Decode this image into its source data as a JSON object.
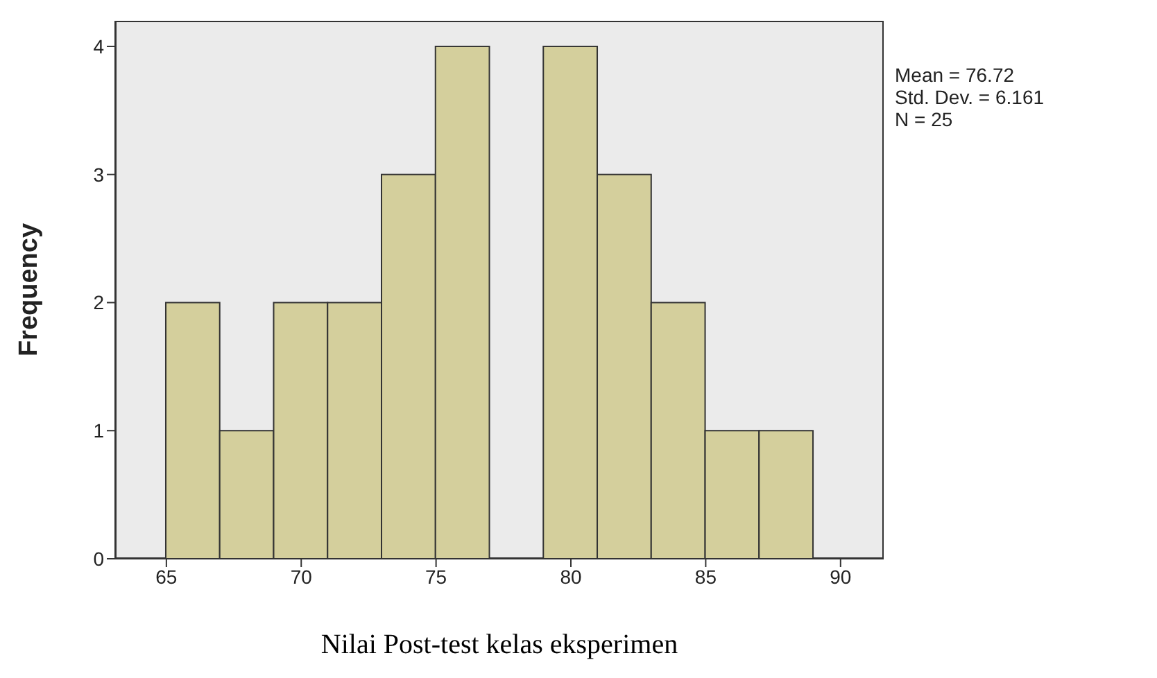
{
  "chart_data": {
    "type": "histogram",
    "ylabel": "Frequency",
    "xlabel": "Nilai Post-test kelas eksperimen",
    "bins": [
      65,
      67,
      69,
      71,
      73,
      75,
      77,
      79,
      81,
      83,
      85,
      87,
      89
    ],
    "values": [
      2,
      1,
      2,
      2,
      3,
      4,
      0,
      4,
      3,
      2,
      1,
      1
    ],
    "color": "#d4cf9c",
    "xlim": [
      63.1,
      91.6
    ],
    "xticks": [
      65,
      70,
      75,
      80,
      85,
      90
    ],
    "ylim": [
      0,
      4.2
    ],
    "yticks": [
      0,
      1,
      2,
      3,
      4
    ],
    "annotations": [
      "Mean = 76.72",
      "Std. Dev. = 6.161",
      "N = 25"
    ]
  }
}
